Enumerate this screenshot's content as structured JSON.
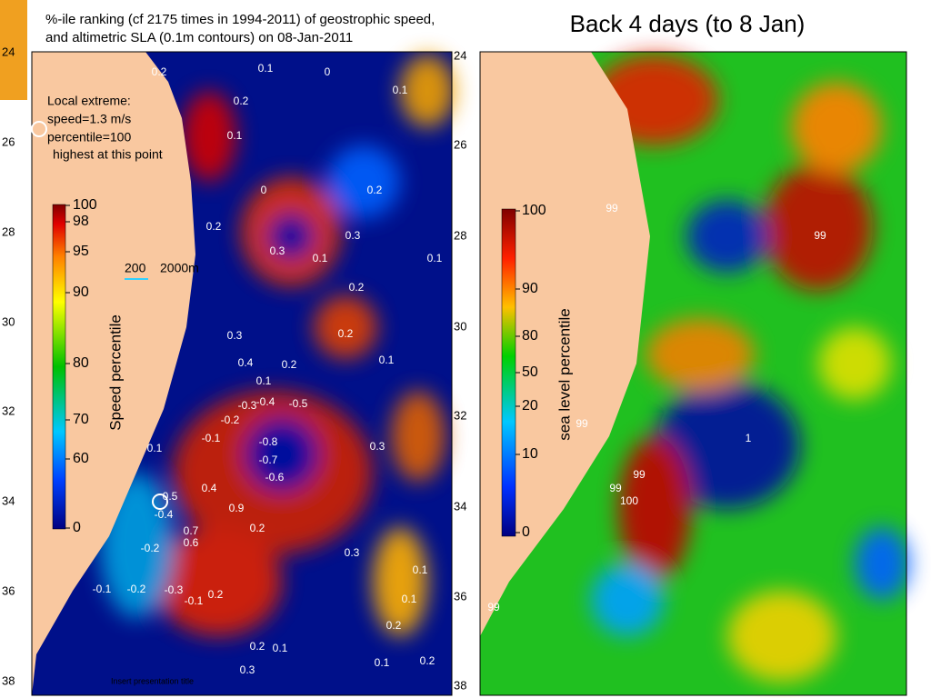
{
  "slide_title": "Back 4 days (to 8 Jan)",
  "footer": "Insert presentation title",
  "left_map": {
    "title_lines": [
      "%-ile ranking (cf 2175 times in 1994-2011) of geostrophic speed,",
      "and altimetric SLA (0.1m contours) on 08-Jan-2011"
    ],
    "lat_labels": [
      "24",
      "26",
      "28",
      "30",
      "32",
      "34",
      "36",
      "38"
    ],
    "note_lines": [
      "Local extreme:",
      "speed=1.3 m/s",
      "percentile=100",
      "highest at this point"
    ],
    "depth_labels": [
      "200",
      "2000m"
    ],
    "colorbar_label": "Speed percentile",
    "colorbar_ticks": [
      "100",
      "98",
      "95",
      "90",
      "80",
      "70",
      "60",
      "0"
    ],
    "contour_labels": [
      "0.2",
      "0.1",
      "0",
      "0.1",
      "0.2",
      "0.1",
      "0",
      "0.2",
      "0.2",
      "0.3",
      "0.3",
      "0.1",
      "0.1",
      "0.2",
      "0.3",
      "0.2",
      "0.4",
      "0.2",
      "0.1",
      "0.1",
      "-0.3",
      "-0.4",
      "-0.5",
      "-0.2",
      "-0.1",
      "-0.8",
      "-0.7",
      "-0.6",
      "0.3",
      "0.1",
      "0.4",
      "0.5",
      "-0.4",
      "0.9",
      "0.2",
      "0.7",
      "0.6",
      "-0.2",
      "0.3",
      "-0.1",
      "-0.2",
      "-0.3",
      "-0.1",
      "0.2",
      "0.1",
      "0.1",
      "0.2",
      "0.2",
      "0.1",
      "0.3",
      "0.1",
      "0.2"
    ]
  },
  "right_map": {
    "lat_labels": [
      "24",
      "26",
      "28",
      "30",
      "32",
      "34",
      "36",
      "38"
    ],
    "colorbar_label": "sea level percentile",
    "colorbar_ticks": [
      "100",
      "90",
      "80",
      "50",
      "20",
      "10",
      "0"
    ],
    "contour_labels": [
      "99",
      "99",
      "99",
      "1",
      "99",
      "99",
      "100",
      "99"
    ]
  }
}
